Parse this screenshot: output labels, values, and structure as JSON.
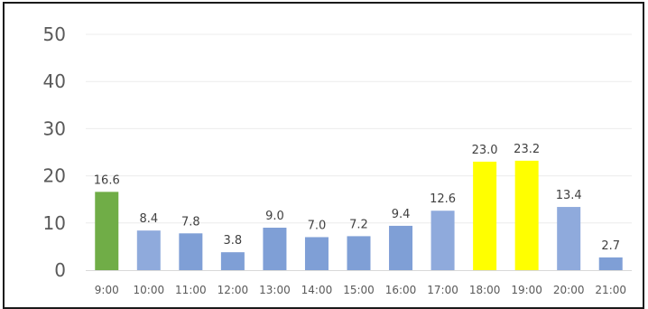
{
  "chart_data": {
    "type": "bar",
    "categories": [
      "9:00",
      "10:00",
      "11:00",
      "12:00",
      "13:00",
      "14:00",
      "15:00",
      "16:00",
      "17:00",
      "18:00",
      "19:00",
      "20:00",
      "21:00"
    ],
    "values": [
      16.6,
      8.4,
      7.8,
      3.8,
      9.0,
      7.0,
      7.2,
      9.4,
      12.6,
      23.0,
      23.2,
      13.4,
      2.7
    ],
    "value_labels": [
      "16.6",
      "8.4",
      "7.8",
      "3.8",
      "9.0",
      "7.0",
      "7.2",
      "9.4",
      "12.6",
      "23.0",
      "23.2",
      "13.4",
      "2.7"
    ],
    "bar_colors": [
      "#70ad47",
      "#8faadc",
      "#7f9fd6",
      "#7f9fd6",
      "#7f9fd6",
      "#7f9fd6",
      "#7f9fd6",
      "#7f9fd6",
      "#8faadc",
      "#ffff00",
      "#ffff00",
      "#8faadc",
      "#7f9fd6"
    ],
    "y_ticks": [
      "0",
      "10",
      "20",
      "30",
      "40",
      "50"
    ],
    "ylim": [
      0,
      50
    ],
    "grid": true,
    "legend": "none"
  }
}
